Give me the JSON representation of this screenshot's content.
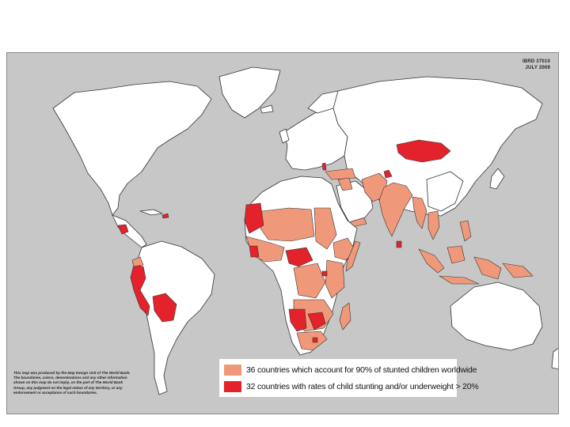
{
  "map": {
    "id_line1": "IBRD 37010",
    "id_line2": "JULY 2009",
    "disclaimer": "This map was produced by the Map Design Unit of The World Bank. The boundaries, colors, denominations and any other information shown on this map do not imply, on the part of The World Bank Group, any judgment on the legal status of any territory, or any endorsement or acceptance of such boundaries.",
    "colors": {
      "ocean": "#c7c7c7",
      "land": "#ffffff",
      "stunted": "#f0997a",
      "high_rates": "#e3222b"
    }
  },
  "legend": {
    "items": [
      {
        "label": "36 countries which account for 90% of stunted children worldwide",
        "color": "#f0997a"
      },
      {
        "label": "32 countries with rates of child stunting and/or underweight > 20%",
        "color": "#e3222b"
      }
    ]
  }
}
